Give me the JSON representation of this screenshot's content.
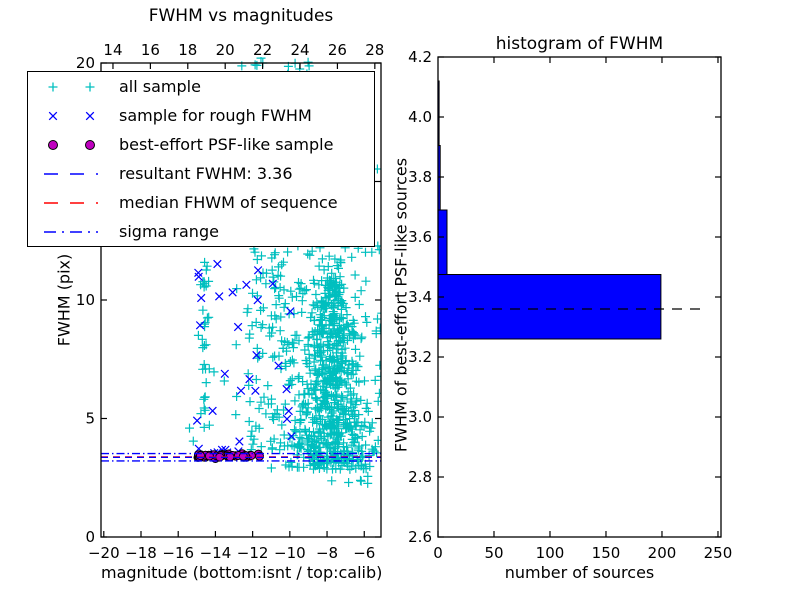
{
  "figure": {
    "background": "#ffffff",
    "spine_color": "#000000"
  },
  "chart_data": [
    {
      "type": "scatter",
      "title": "FWHM vs magnitudes",
      "xlabel": "magnitude (bottom:isnt / top:calib)",
      "ylabel": "FWHM (pix)",
      "xlim": [
        -20.15,
        -5.1
      ],
      "ylim": [
        0,
        20
      ],
      "top_xlim": [
        13.36,
        28.33
      ],
      "xticks": {
        "values": [
          -20,
          -18,
          -16,
          -14,
          -12,
          -10,
          -8,
          -6
        ],
        "labels": [
          "−20",
          "−18",
          "−16",
          "−14",
          "−12",
          "−10",
          "−8",
          "−6"
        ]
      },
      "top_xticks": {
        "values": [
          14,
          16,
          18,
          20,
          22,
          24,
          26,
          28
        ],
        "labels": [
          "14",
          "16",
          "18",
          "20",
          "22",
          "24",
          "26",
          "28"
        ]
      },
      "yticks": {
        "values": [
          0,
          5,
          10,
          15,
          20
        ],
        "labels": [
          "0",
          "5",
          "10",
          "15",
          "20"
        ]
      },
      "legend": [
        {
          "label": "all sample",
          "type": "plus",
          "color": "#00bfbf"
        },
        {
          "label": "sample for rough FWHM",
          "type": "x",
          "color": "#0000ff"
        },
        {
          "label": "best-effort PSF-like sample",
          "type": "dot",
          "color": "#bf00bf",
          "edge": "#000000"
        },
        {
          "label": "resultant FWHM: 3.36",
          "type": "dash",
          "color": "#0000ff"
        },
        {
          "label": "median FHWM of sequence",
          "type": "dash",
          "color": "#ff0000"
        },
        {
          "label": "sigma range",
          "type": "dashdot",
          "color": "#0000ff"
        }
      ],
      "series": [
        {
          "name": "all-top-band",
          "marker": "plus",
          "color": "#00bfbf",
          "kind": "uniform",
          "n": 12,
          "x": [
            -12.6,
            -8.4
          ],
          "y": [
            19.5,
            20.3
          ]
        },
        {
          "name": "all-right-edge",
          "marker": "plus",
          "color": "#00bfbf",
          "kind": "uniform",
          "n": 3,
          "x": [
            -5.35,
            -5.05
          ],
          "y": [
            12.0,
            16.5
          ]
        },
        {
          "name": "all-left-scatter",
          "marker": "plus",
          "color": "#00bfbf",
          "kind": "uniform",
          "n": 30,
          "x": [
            -15.5,
            -12.7
          ],
          "y": [
            3.8,
            19.3
          ]
        },
        {
          "name": "all-left-column",
          "marker": "plus",
          "color": "#00bfbf",
          "kind": "column",
          "n": 45,
          "cx": -14.55,
          "sx": 0.12,
          "y": [
            3.9,
            19.2
          ]
        },
        {
          "name": "all-mid",
          "marker": "plus",
          "color": "#00bfbf",
          "kind": "uniform",
          "n": 110,
          "x": [
            -12.3,
            -9.6
          ],
          "y": [
            3.4,
            12.2
          ]
        },
        {
          "name": "all-upper-spike",
          "marker": "plus",
          "color": "#00bfbf",
          "kind": "column",
          "n": 45,
          "cx": -7.9,
          "sx": 0.55,
          "y": [
            12.2,
            19.0
          ]
        },
        {
          "name": "all-dense-core",
          "marker": "plus",
          "color": "#00bfbf",
          "kind": "funnel",
          "n": 650,
          "cx": -7.75,
          "ytop": 12.3,
          "ybot": 2.85,
          "wtop": 0.9,
          "wbot": 5.6,
          "pow": 0.55
        },
        {
          "name": "all-halo",
          "marker": "plus",
          "color": "#00bfbf",
          "kind": "uniform",
          "n": 150,
          "x": [
            -11.0,
            -5.05
          ],
          "y": [
            2.25,
            12.5
          ]
        },
        {
          "name": "rough-scatter",
          "marker": "x",
          "color": "#0000ff",
          "kind": "uniform",
          "n": 26,
          "x": [
            -15.2,
            -9.9
          ],
          "y": [
            3.6,
            11.8
          ]
        },
        {
          "name": "rough-band",
          "marker": "x",
          "color": "#0000ff",
          "kind": "uniform",
          "n": 8,
          "x": [
            -15.0,
            -10.5
          ],
          "y": [
            3.45,
            3.75
          ]
        },
        {
          "name": "psf-like-band",
          "marker": "dot",
          "color": "#bf00bf",
          "edge": "#000000",
          "kind": "gaussband",
          "n": 48,
          "x": [
            -15.0,
            -11.45
          ],
          "cy": 3.42,
          "sy": 0.05
        }
      ],
      "lines": [
        {
          "name": "sigma-upper",
          "y": 3.52,
          "color": "#0000ff",
          "dash": "dashdot"
        },
        {
          "name": "sigma-lower",
          "y": 3.21,
          "color": "#0000ff",
          "dash": "dashdot"
        },
        {
          "name": "median-fwhm",
          "y": 3.38,
          "color": "#ff0000",
          "dash": "dashed"
        },
        {
          "name": "resultant-fwhm",
          "y": 3.36,
          "color": "#0000ff",
          "dash": "dashed"
        }
      ],
      "resultant_fwhm": 3.36
    },
    {
      "type": "bar-horizontal",
      "title": "histogram of FWHM",
      "xlabel": "number of sources",
      "ylabel": "FWHM of best-effort PSF-like sources",
      "xlim": [
        0,
        252.7
      ],
      "ylim": [
        2.6,
        4.2
      ],
      "xticks": {
        "values": [
          0,
          50,
          100,
          150,
          200,
          250
        ],
        "labels": [
          "0",
          "50",
          "100",
          "150",
          "200",
          "250"
        ]
      },
      "yticks": {
        "values": [
          2.6,
          2.8,
          3.0,
          3.2,
          3.4,
          3.6,
          3.8,
          4.0,
          4.2
        ],
        "labels": [
          "2.6",
          "2.8",
          "3.0",
          "3.2",
          "3.4",
          "3.6",
          "3.8",
          "4.0",
          "4.2"
        ]
      },
      "bar_color": "#0000ff",
      "bar_edge": "#000000",
      "bins": [
        {
          "from": 3.26,
          "to": 3.475,
          "count": 199
        },
        {
          "from": 3.475,
          "to": 3.69,
          "count": 8
        },
        {
          "from": 3.69,
          "to": 3.905,
          "count": 2
        },
        {
          "from": 3.905,
          "to": 4.12,
          "count": 1
        }
      ],
      "median_line": {
        "value": 3.36,
        "extent": 240,
        "color": "#000000",
        "dash": "dashed"
      }
    }
  ]
}
